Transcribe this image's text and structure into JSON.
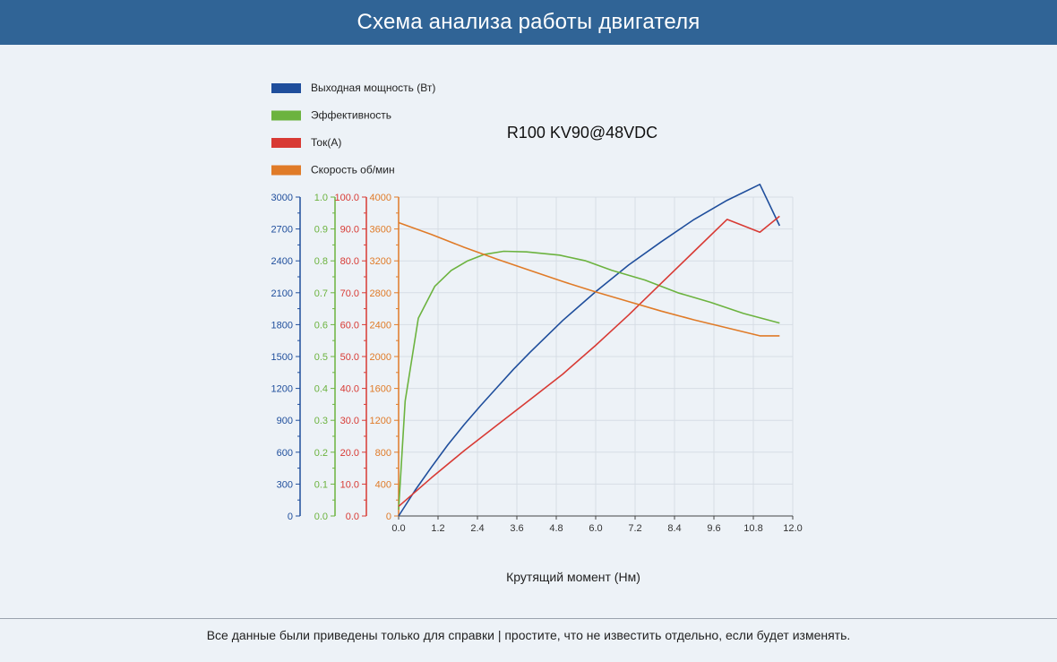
{
  "header": {
    "title": "Схема анализа работы двигателя"
  },
  "footer": {
    "note": "Все данные были приведены только для справки | простите, что не известить отдельно, если будет изменять."
  },
  "colors": {
    "power": "#1f4e9c",
    "efficiency": "#6cb33f",
    "current": "#d83a34",
    "speed": "#e07b28",
    "header_bg": "#306496",
    "grid": "#d7dde5"
  },
  "chart_data": {
    "type": "line",
    "title": "R100 KV90@48VDC",
    "xlabel": "Крутящий момент (Нм)",
    "xlim": [
      0,
      12
    ],
    "x_ticks": [
      "0.0",
      "1.2",
      "2.4",
      "3.6",
      "4.8",
      "6.0",
      "7.2",
      "8.4",
      "9.6",
      "10.8",
      "12.0"
    ],
    "legend_position": "top-left",
    "grid": true,
    "axes": [
      {
        "id": "power",
        "color": "#1f4e9c",
        "ylim": [
          0,
          3000
        ],
        "ticks": [
          "0",
          "300",
          "600",
          "900",
          "1200",
          "1500",
          "1800",
          "2100",
          "2400",
          "2700",
          "3000"
        ]
      },
      {
        "id": "efficiency",
        "color": "#6cb33f",
        "ylim": [
          0,
          1
        ],
        "ticks": [
          "0.0",
          "0.1",
          "0.2",
          "0.3",
          "0.4",
          "0.5",
          "0.6",
          "0.7",
          "0.8",
          "0.9",
          "1.0"
        ]
      },
      {
        "id": "current",
        "color": "#d83a34",
        "ylim": [
          0,
          100
        ],
        "ticks": [
          "0.0",
          "10.0",
          "20.0",
          "30.0",
          "40.0",
          "50.0",
          "60.0",
          "70.0",
          "80.0",
          "90.0",
          "100.0"
        ]
      },
      {
        "id": "speed",
        "color": "#e07b28",
        "ylim": [
          0,
          4000
        ],
        "ticks": [
          "0",
          "400",
          "800",
          "1200",
          "1600",
          "2000",
          "2400",
          "2800",
          "3200",
          "3600",
          "4000"
        ]
      }
    ],
    "series": [
      {
        "name": "Выходная мощность (Вт)",
        "axis": "power",
        "color": "#1f4e9c",
        "x": [
          0,
          0.5,
          1.0,
          1.5,
          2.0,
          2.5,
          3.0,
          3.5,
          4.0,
          5.0,
          6.0,
          7.0,
          8.0,
          9.0,
          10.0,
          11.0,
          11.6
        ],
        "y": [
          0,
          240,
          460,
          670,
          860,
          1040,
          1210,
          1380,
          1540,
          1840,
          2110,
          2360,
          2580,
          2790,
          2970,
          3120,
          2730
        ]
      },
      {
        "name": "Эффективность",
        "axis": "efficiency",
        "color": "#6cb33f",
        "x": [
          0,
          0.2,
          0.6,
          1.1,
          1.6,
          2.1,
          2.6,
          3.2,
          3.9,
          4.9,
          5.7,
          6.5,
          7.5,
          8.5,
          9.5,
          10.5,
          11.6
        ],
        "y": [
          0.02,
          0.36,
          0.62,
          0.72,
          0.77,
          0.8,
          0.82,
          0.83,
          0.828,
          0.818,
          0.8,
          0.77,
          0.74,
          0.7,
          0.67,
          0.635,
          0.605
        ]
      },
      {
        "name": "Ток(A)",
        "axis": "current",
        "color": "#d83a34",
        "x": [
          0,
          1.0,
          2.0,
          3.0,
          4.0,
          5.0,
          6.0,
          7.0,
          8.0,
          9.0,
          10.0,
          11.0,
          11.6
        ],
        "y": [
          3,
          12,
          20.5,
          28.5,
          36.5,
          44.5,
          53.5,
          63,
          73,
          83,
          93,
          89,
          94
        ]
      },
      {
        "name": "Скорость об/мин",
        "axis": "speed",
        "color": "#e07b28",
        "x": [
          0,
          1.0,
          2.0,
          3.0,
          4.0,
          5.0,
          6.0,
          7.0,
          8.0,
          9.0,
          10.0,
          11.0,
          11.6
        ],
        "y": [
          3680,
          3530,
          3370,
          3220,
          3080,
          2940,
          2810,
          2690,
          2570,
          2460,
          2360,
          2260,
          2260
        ]
      }
    ]
  }
}
